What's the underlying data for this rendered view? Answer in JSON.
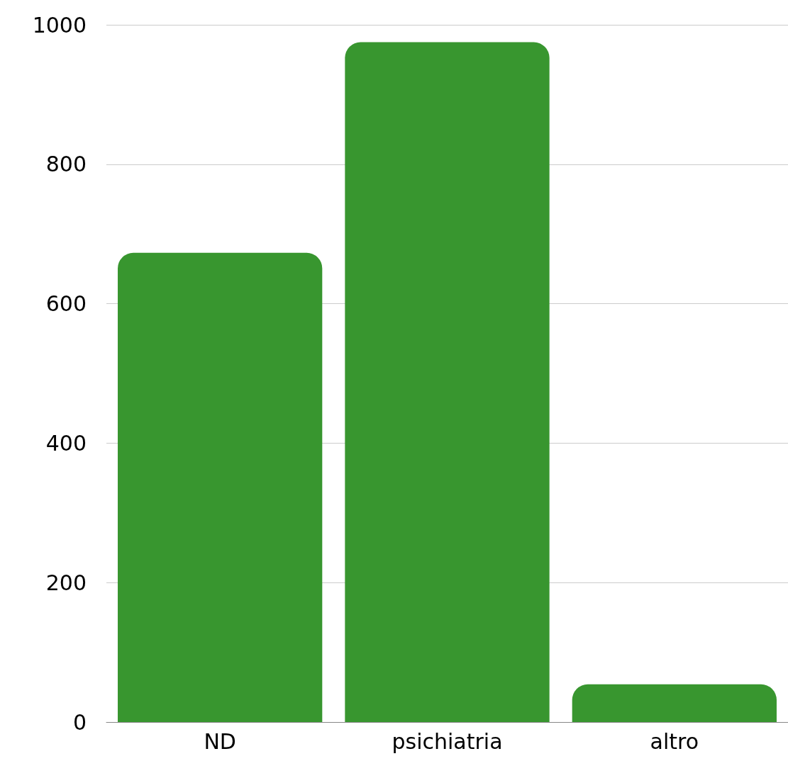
{
  "chart_data": {
    "type": "bar",
    "categories": [
      "ND",
      "psichiatria",
      "altro"
    ],
    "values": [
      673,
      975,
      54
    ],
    "color": "#38962f",
    "ylim": [
      0,
      1000
    ],
    "yticks": [
      0,
      200,
      400,
      600,
      800,
      1000
    ],
    "grid": "y"
  }
}
